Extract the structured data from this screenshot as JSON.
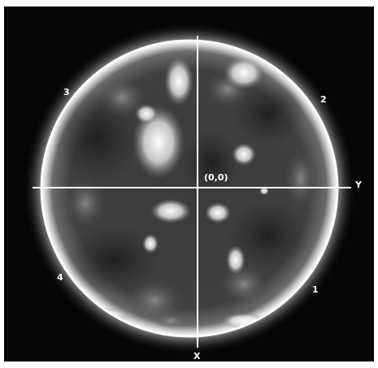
{
  "image": {
    "description_colors": {
      "background": "#050505",
      "disk": "#3a3a3a",
      "limb": "#ffffff",
      "axes": "#ffffff"
    }
  },
  "labels": {
    "origin": "(0,0)",
    "x_axis": "X",
    "y_axis": "Y",
    "quadrants": [
      "1",
      "2",
      "3",
      "4"
    ]
  }
}
